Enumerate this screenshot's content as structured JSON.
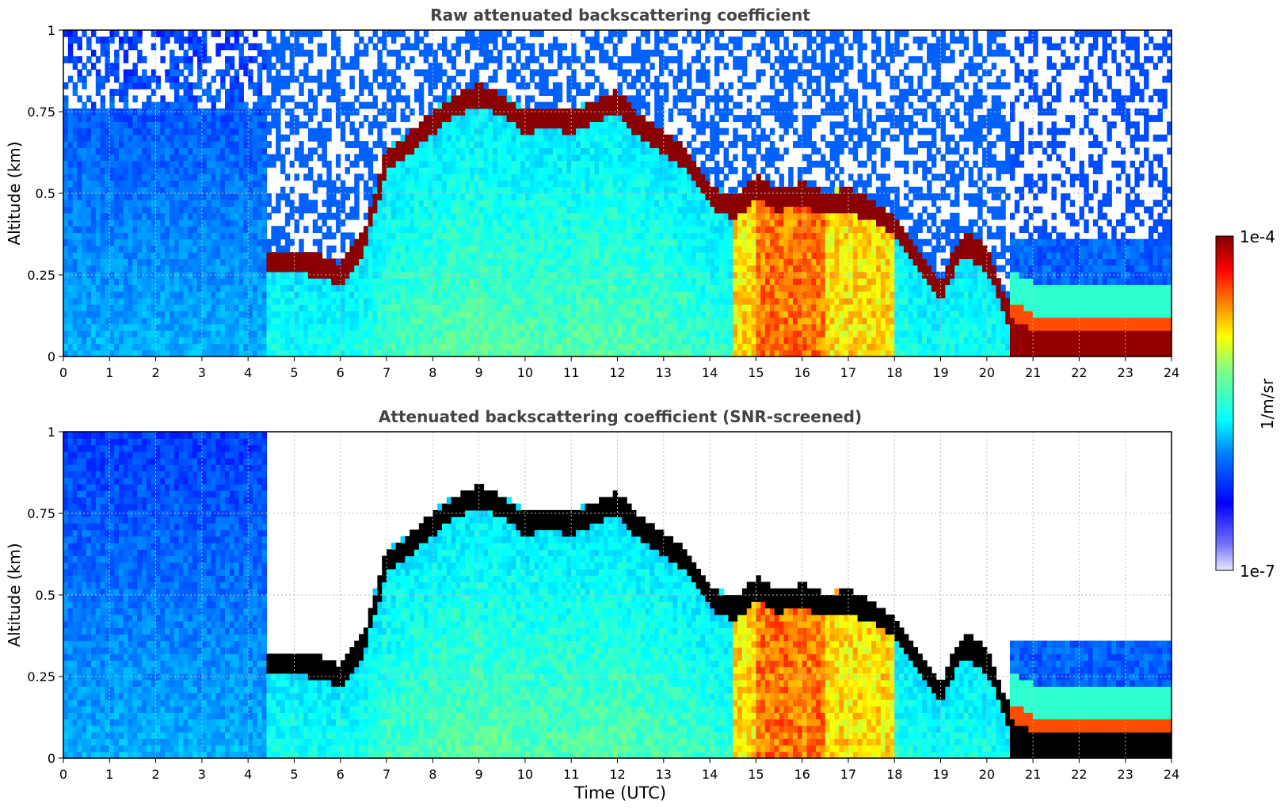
{
  "colors": {
    "jet_low": "#0000ff",
    "jet_mid": "#00ffff",
    "jet_high": "#ffff00",
    "jet_top": "#8b0000",
    "below_min": "#e8e8ff",
    "saturated_black": "#000000",
    "title_color": "#444444"
  },
  "colorbar": {
    "label": "1/m/sr",
    "max_label": "1e-4",
    "min_label": "1e-7",
    "scale": "log",
    "range": [
      1e-07,
      0.0001
    ]
  },
  "chart_data": [
    {
      "type": "heatmap",
      "title": "Raw attenuated backscattering coefficient",
      "xlabel": "",
      "ylabel": "Altitude (km)",
      "xlim": [
        0,
        24
      ],
      "ylim": [
        0,
        1
      ],
      "xticks": [
        "0",
        "1",
        "2",
        "3",
        "4",
        "5",
        "6",
        "7",
        "8",
        "9",
        "10",
        "11",
        "12",
        "13",
        "14",
        "15",
        "16",
        "17",
        "18",
        "19",
        "20",
        "21",
        "22",
        "23",
        "24"
      ],
      "yticks": [
        "0",
        "0.25",
        "0.5",
        "0.75",
        "1"
      ],
      "grid": true,
      "cloud_base_km": {
        "x": [
          4.5,
          5,
          5.5,
          6,
          6.5,
          7,
          7.5,
          8,
          8.5,
          9,
          9.5,
          10,
          10.5,
          11,
          11.5,
          12,
          12.5,
          13,
          13.5,
          14,
          14.5,
          15,
          15.5,
          16,
          16.5,
          17,
          17.5,
          18,
          18.5,
          19,
          19.5,
          20,
          20.5,
          21,
          21.5,
          22,
          22.5,
          23,
          23.5,
          24
        ],
        "y": [
          0.29,
          0.29,
          0.28,
          0.25,
          0.35,
          0.6,
          0.65,
          0.72,
          0.77,
          0.8,
          0.77,
          0.72,
          0.73,
          0.72,
          0.75,
          0.78,
          0.7,
          0.66,
          0.6,
          0.5,
          0.45,
          0.52,
          0.48,
          0.5,
          0.47,
          0.48,
          0.45,
          0.4,
          0.3,
          0.2,
          0.35,
          0.3,
          0.12,
          0.08,
          0.08,
          0.08,
          0.08,
          0.08,
          0.08,
          0.08
        ]
      }
    },
    {
      "type": "heatmap",
      "title": "Attenuated backscattering coefficient (SNR-screened)",
      "xlabel": "Time (UTC)",
      "ylabel": "Altitude (km)",
      "xlim": [
        0,
        24
      ],
      "ylim": [
        0,
        1
      ],
      "xticks": [
        "0",
        "1",
        "2",
        "3",
        "4",
        "5",
        "6",
        "7",
        "8",
        "9",
        "10",
        "11",
        "12",
        "13",
        "14",
        "15",
        "16",
        "17",
        "18",
        "19",
        "20",
        "21",
        "22",
        "23",
        "24"
      ],
      "yticks": [
        "0",
        "0.25",
        "0.5",
        "0.75",
        "1"
      ],
      "grid": true
    }
  ]
}
